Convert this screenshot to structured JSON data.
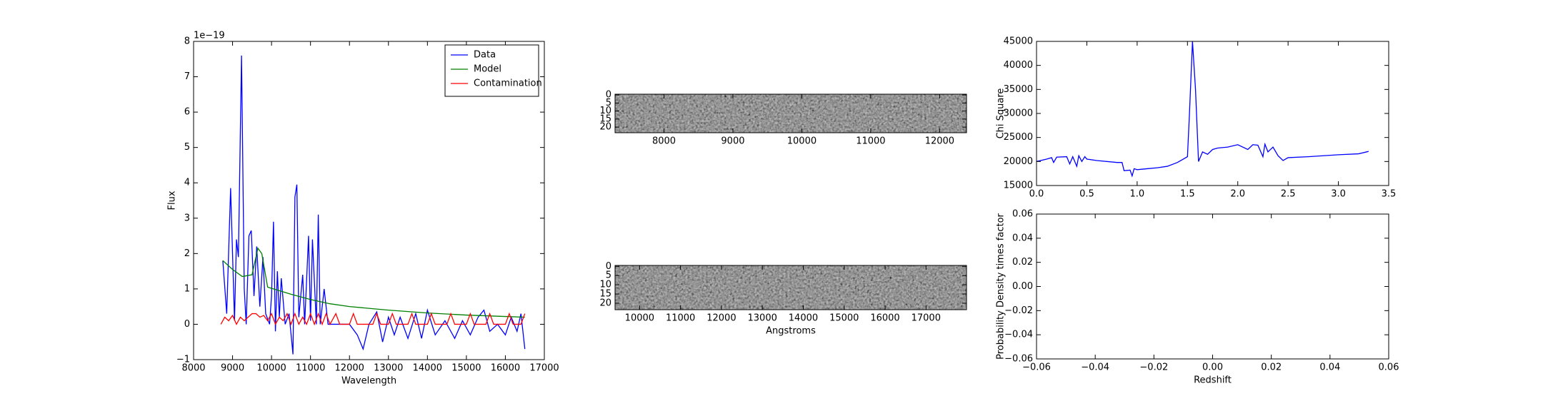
{
  "chart_data": [
    {
      "type": "line",
      "x_label": "Wavelength",
      "y_label": "Flux",
      "offset_text": "1e−19",
      "xlim": [
        8000,
        17000
      ],
      "xticks": [
        8000,
        9000,
        10000,
        11000,
        12000,
        13000,
        14000,
        15000,
        16000,
        17000
      ],
      "ylim": [
        -1,
        8
      ],
      "yticks": [
        {
          "value": -1,
          "label": "−1"
        },
        0,
        1,
        2,
        3,
        4,
        5,
        6,
        7,
        8
      ],
      "legend": "upper right",
      "series": [
        {
          "name": "Data",
          "color": "#0000ff",
          "x": [
            8750,
            8850,
            8950,
            9050,
            9100,
            9150,
            9230,
            9300,
            9350,
            9420,
            9480,
            9550,
            9620,
            9700,
            9780,
            9850,
            9950,
            10000,
            10050,
            10100,
            10150,
            10200,
            10250,
            10350,
            10450,
            10550,
            10600,
            10650,
            10700,
            10800,
            10850,
            10950,
            11000,
            11050,
            11150,
            11200,
            11250,
            11350,
            11450,
            11600,
            11800,
            12000,
            12200,
            12350,
            12500,
            12700,
            12850,
            13000,
            13150,
            13300,
            13500,
            13700,
            13850,
            14000,
            14200,
            14450,
            14700,
            14900,
            15100,
            15300,
            15450,
            15600,
            15800,
            16000,
            16150,
            16300,
            16400,
            16500
          ],
          "values": [
            1.8,
            0.3,
            3.85,
            0.1,
            2.4,
            1.9,
            7.6,
            1.0,
            0.0,
            2.5,
            2.65,
            0.8,
            2.2,
            0.5,
            1.9,
            0.3,
            0.0,
            0.8,
            2.9,
            -0.2,
            1.5,
            0.2,
            1.3,
            0.0,
            0.3,
            -0.85,
            3.6,
            3.95,
            0.2,
            1.4,
            0.0,
            2.5,
            0.1,
            2.4,
            0.0,
            3.1,
            0.0,
            1.0,
            0.0,
            0.0,
            0.0,
            0.0,
            -0.3,
            -0.7,
            0.0,
            0.35,
            -0.5,
            0.2,
            -0.3,
            0.2,
            -0.4,
            0.3,
            -0.4,
            0.4,
            -0.3,
            0.1,
            -0.4,
            0.1,
            -0.3,
            0.2,
            0.4,
            -0.2,
            0.0,
            -0.3,
            0.2,
            -0.2,
            0.3,
            -0.7
          ]
        },
        {
          "name": "Model",
          "color": "#008000",
          "x": [
            8750,
            9000,
            9250,
            9500,
            9650,
            9750,
            9900,
            10200,
            10500,
            11000,
            11500,
            12000,
            13000,
            14000,
            15000,
            16000,
            16500
          ],
          "values": [
            1.8,
            1.55,
            1.35,
            1.4,
            2.15,
            2.0,
            1.05,
            0.95,
            0.85,
            0.7,
            0.58,
            0.5,
            0.4,
            0.32,
            0.26,
            0.22,
            0.2
          ]
        },
        {
          "name": "Contamination",
          "color": "#ff0000",
          "x": [
            8700,
            8800,
            8900,
            9000,
            9100,
            9200,
            9300,
            9400,
            9500,
            9600,
            9700,
            9800,
            9900,
            10000,
            10100,
            10200,
            10300,
            10400,
            10500,
            10600,
            10700,
            10800,
            10900,
            11000,
            11100,
            11200,
            11300,
            11400,
            11500,
            11650,
            11750,
            12000,
            12100,
            12200,
            12600,
            12700,
            12800,
            13000,
            13100,
            13200,
            13500,
            13600,
            13700,
            14000,
            14100,
            14200,
            14500,
            14600,
            14700,
            15000,
            15100,
            15200,
            15500,
            15600,
            15700,
            16000,
            16100,
            16200,
            16400,
            16500
          ],
          "values": [
            0.0,
            0.2,
            0.1,
            0.25,
            0.0,
            0.2,
            0.1,
            0.2,
            0.3,
            0.3,
            0.2,
            0.25,
            0.1,
            0.3,
            0.0,
            0.2,
            0.1,
            0.3,
            0.0,
            0.3,
            0.0,
            0.2,
            0.0,
            0.3,
            0.0,
            0.3,
            0.0,
            0.3,
            0.0,
            0.3,
            0.0,
            0.0,
            0.3,
            0.0,
            0.0,
            0.3,
            0.0,
            0.0,
            0.3,
            0.0,
            0.0,
            0.3,
            0.0,
            0.0,
            0.3,
            0.0,
            0.0,
            0.3,
            0.0,
            0.0,
            0.3,
            0.0,
            0.0,
            0.3,
            0.0,
            0.0,
            0.3,
            0.0,
            0.0,
            0.3
          ]
        }
      ]
    },
    {
      "type": "image",
      "xlim": [
        7290,
        12390
      ],
      "xticks": [
        8000,
        9000,
        10000,
        11000,
        12000
      ],
      "ylim": [
        -0.5,
        23.5
      ],
      "y_inverted": true,
      "yticks": [
        0,
        5,
        10,
        15,
        20
      ]
    },
    {
      "type": "image",
      "x_label": "Angstroms",
      "xlim": [
        9400,
        17990
      ],
      "xticks": [
        10000,
        11000,
        12000,
        13000,
        14000,
        15000,
        16000,
        17000
      ],
      "ylim": [
        -0.5,
        23.5
      ],
      "y_inverted": true,
      "yticks": [
        0,
        5,
        10,
        15,
        20
      ]
    },
    {
      "type": "line",
      "y_label": "Chi Square",
      "xlim": [
        0,
        3.5
      ],
      "xticks": [
        {
          "value": 0,
          "label": "0.0"
        },
        0.5,
        {
          "value": 1,
          "label": "1.0"
        },
        1.5,
        {
          "value": 2,
          "label": "2.0"
        },
        2.5,
        {
          "value": 3,
          "label": "3.0"
        },
        3.5
      ],
      "ylim": [
        15000,
        45000
      ],
      "yticks": [
        15000,
        20000,
        25000,
        30000,
        35000,
        40000,
        45000
      ],
      "series": [
        {
          "color": "#0000ff",
          "x": [
            0,
            0.1,
            0.15,
            0.17,
            0.2,
            0.3,
            0.33,
            0.36,
            0.4,
            0.42,
            0.45,
            0.48,
            0.5,
            0.6,
            0.8,
            0.85,
            0.87,
            0.93,
            0.95,
            0.97,
            1.0,
            1.1,
            1.2,
            1.3,
            1.4,
            1.5,
            1.52,
            1.55,
            1.58,
            1.61,
            1.65,
            1.7,
            1.75,
            1.8,
            1.9,
            2.0,
            2.1,
            2.15,
            2.2,
            2.25,
            2.27,
            2.3,
            2.35,
            2.4,
            2.45,
            2.5,
            2.7,
            3.0,
            3.2,
            3.3
          ],
          "values": [
            20000,
            20500,
            20800,
            19800,
            20900,
            21000,
            19500,
            21000,
            19000,
            21200,
            20000,
            21000,
            20500,
            20200,
            19800,
            19800,
            18100,
            18200,
            17000,
            18500,
            18300,
            18500,
            18700,
            19000,
            19800,
            21000,
            30000,
            45000,
            35000,
            20000,
            22000,
            21500,
            22500,
            22800,
            23000,
            23500,
            22500,
            23500,
            23400,
            21000,
            23600,
            22000,
            23000,
            21200,
            20200,
            20800,
            21000,
            21400,
            21600,
            22100
          ]
        }
      ]
    },
    {
      "type": "line",
      "x_label": "Redshift",
      "y_label": "Probability Density times factor",
      "xlim": [
        -0.06,
        0.06
      ],
      "xticks": [
        {
          "value": -0.06,
          "label": "−0.06"
        },
        {
          "value": -0.04,
          "label": "−0.04"
        },
        {
          "value": -0.02,
          "label": "−0.02"
        },
        {
          "value": 0,
          "label": "0.00"
        },
        {
          "value": 0.02,
          "label": "0.02"
        },
        {
          "value": 0.04,
          "label": "0.04"
        },
        {
          "value": 0.06,
          "label": "0.06"
        }
      ],
      "ylim": [
        -0.06,
        0.06
      ],
      "yticks": [
        {
          "value": -0.06,
          "label": "−0.06"
        },
        {
          "value": -0.04,
          "label": "−0.04"
        },
        {
          "value": -0.02,
          "label": "−0.02"
        },
        {
          "value": 0,
          "label": "0.00"
        },
        {
          "value": 0.02,
          "label": "0.02"
        },
        {
          "value": 0.04,
          "label": "0.04"
        },
        {
          "value": 0.06,
          "label": "0.06"
        }
      ]
    }
  ]
}
